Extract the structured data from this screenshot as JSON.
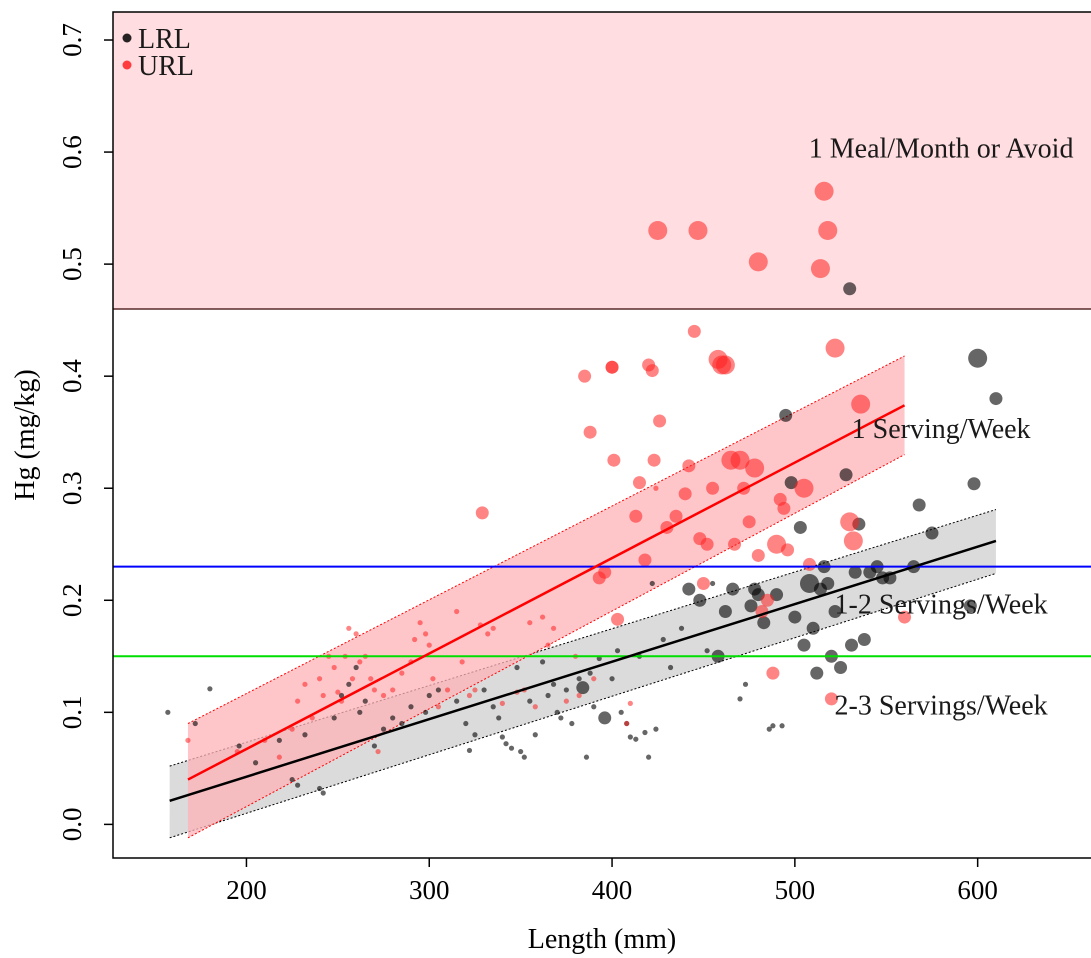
{
  "chart_data": {
    "type": "scatter",
    "title": "",
    "xlabel": "Length (mm)",
    "ylabel": "Hg (mg/kg)",
    "xlim": [
      127,
      662
    ],
    "ylim": [
      -0.03,
      0.725
    ],
    "xticks": [
      200,
      300,
      400,
      500,
      600
    ],
    "yticks": [
      0.0,
      0.1,
      0.2,
      0.3,
      0.4,
      0.5,
      0.6,
      0.7
    ],
    "xtick_labels": [
      "200",
      "300",
      "400",
      "500",
      "600"
    ],
    "ytick_labels": [
      "0.0",
      "0.1",
      "0.2",
      "0.3",
      "0.4",
      "0.5",
      "0.6",
      "0.7"
    ],
    "grid": false,
    "legend_position": "top-left",
    "legend": [
      {
        "name": "LRL",
        "color": "#000000"
      },
      {
        "name": "URL",
        "color": "#ff2020"
      }
    ],
    "avoid_zone": {
      "y_from": 0.46,
      "label": "1 Meal/Month or Avoid",
      "label_x": 580,
      "label_y": 0.595,
      "fill": "#ffdde0",
      "border": "#5a2a2a"
    },
    "thresholds": [
      {
        "y": 0.23,
        "color": "#0000ff"
      },
      {
        "y": 0.15,
        "color": "#00dd00"
      }
    ],
    "zone_labels": [
      {
        "text": "1 Serving/Week",
        "x": 580,
        "y": 0.345
      },
      {
        "text": "1-2 Servings/Week",
        "x": 580,
        "y": 0.188
      },
      {
        "text": "2-3 Servings/Week",
        "x": 580,
        "y": 0.098
      }
    ],
    "fits": [
      {
        "series": "LRL",
        "color": "#000000",
        "band_fill": "#cfcfcf",
        "x": [
          158,
          610
        ],
        "y": [
          0.021,
          0.253
        ],
        "lower": [
          -0.012,
          0.224
        ],
        "upper": [
          0.052,
          0.281
        ]
      },
      {
        "series": "URL",
        "color": "#ff0000",
        "band_fill": "#ffb3b8",
        "x": [
          168,
          560
        ],
        "y": [
          0.04,
          0.374
        ],
        "lower": [
          -0.012,
          0.33
        ],
        "upper": [
          0.09,
          0.418
        ]
      }
    ],
    "series": [
      {
        "name": "LRL",
        "color": "#000000",
        "opacity": 0.6,
        "points": [
          [
            157,
            0.1,
            1
          ],
          [
            172,
            0.09,
            1
          ],
          [
            180,
            0.121,
            1
          ],
          [
            196,
            0.07,
            1
          ],
          [
            205,
            0.055,
            1
          ],
          [
            218,
            0.075,
            1
          ],
          [
            225,
            0.04,
            1
          ],
          [
            228,
            0.035,
            1
          ],
          [
            232,
            0.08,
            1
          ],
          [
            240,
            0.032,
            1
          ],
          [
            242,
            0.028,
            1
          ],
          [
            248,
            0.095,
            1
          ],
          [
            252,
            0.115,
            1
          ],
          [
            256,
            0.125,
            1
          ],
          [
            260,
            0.14,
            1
          ],
          [
            262,
            0.1,
            1
          ],
          [
            265,
            0.11,
            1
          ],
          [
            270,
            0.07,
            1
          ],
          [
            275,
            0.085,
            1
          ],
          [
            280,
            0.095,
            1
          ],
          [
            285,
            0.09,
            1
          ],
          [
            290,
            0.105,
            1
          ],
          [
            298,
            0.1,
            1
          ],
          [
            300,
            0.115,
            1
          ],
          [
            305,
            0.12,
            1
          ],
          [
            315,
            0.11,
            1
          ],
          [
            320,
            0.09,
            1
          ],
          [
            322,
            0.066,
            1
          ],
          [
            325,
            0.08,
            1
          ],
          [
            330,
            0.12,
            1
          ],
          [
            335,
            0.105,
            1
          ],
          [
            338,
            0.095,
            1
          ],
          [
            340,
            0.078,
            1
          ],
          [
            342,
            0.072,
            1
          ],
          [
            345,
            0.068,
            1
          ],
          [
            348,
            0.14,
            1
          ],
          [
            350,
            0.065,
            1
          ],
          [
            352,
            0.06,
            1
          ],
          [
            355,
            0.11,
            1
          ],
          [
            358,
            0.08,
            1
          ],
          [
            362,
            0.145,
            1
          ],
          [
            365,
            0.115,
            1
          ],
          [
            368,
            0.125,
            1
          ],
          [
            370,
            0.1,
            1
          ],
          [
            372,
            0.095,
            1
          ],
          [
            375,
            0.12,
            1
          ],
          [
            378,
            0.09,
            1
          ],
          [
            382,
            0.13,
            1
          ],
          [
            384,
            0.122,
            2
          ],
          [
            386,
            0.06,
            1
          ],
          [
            388,
            0.135,
            1
          ],
          [
            390,
            0.105,
            1
          ],
          [
            393,
            0.148,
            1
          ],
          [
            396,
            0.095,
            2
          ],
          [
            400,
            0.13,
            1
          ],
          [
            403,
            0.155,
            1
          ],
          [
            405,
            0.1,
            1
          ],
          [
            408,
            0.09,
            1
          ],
          [
            410,
            0.078,
            1
          ],
          [
            413,
            0.076,
            1
          ],
          [
            415,
            0.15,
            1
          ],
          [
            418,
            0.082,
            1
          ],
          [
            420,
            0.06,
            1
          ],
          [
            422,
            0.215,
            1
          ],
          [
            424,
            0.085,
            1
          ],
          [
            428,
            0.165,
            1
          ],
          [
            432,
            0.14,
            1
          ],
          [
            438,
            0.175,
            1
          ],
          [
            442,
            0.21,
            2
          ],
          [
            448,
            0.2,
            2
          ],
          [
            452,
            0.155,
            1
          ],
          [
            455,
            0.215,
            1
          ],
          [
            458,
            0.15,
            2
          ],
          [
            462,
            0.19,
            2
          ],
          [
            466,
            0.21,
            2
          ],
          [
            470,
            0.112,
            1
          ],
          [
            473,
            0.125,
            1
          ],
          [
            476,
            0.195,
            2
          ],
          [
            478,
            0.21,
            2
          ],
          [
            480,
            0.205,
            2
          ],
          [
            483,
            0.18,
            2
          ],
          [
            486,
            0.085,
            1
          ],
          [
            488,
            0.088,
            1
          ],
          [
            490,
            0.205,
            2
          ],
          [
            493,
            0.088,
            1
          ],
          [
            495,
            0.365,
            2
          ],
          [
            498,
            0.305,
            2
          ],
          [
            500,
            0.185,
            2
          ],
          [
            503,
            0.265,
            2
          ],
          [
            505,
            0.16,
            2
          ],
          [
            508,
            0.215,
            3
          ],
          [
            510,
            0.175,
            2
          ],
          [
            512,
            0.135,
            2
          ],
          [
            514,
            0.21,
            2
          ],
          [
            516,
            0.23,
            2
          ],
          [
            518,
            0.215,
            2
          ],
          [
            520,
            0.15,
            2
          ],
          [
            522,
            0.19,
            2
          ],
          [
            525,
            0.14,
            2
          ],
          [
            528,
            0.312,
            2
          ],
          [
            530,
            0.478,
            2
          ],
          [
            531,
            0.16,
            2
          ],
          [
            533,
            0.225,
            2
          ],
          [
            535,
            0.268,
            2
          ],
          [
            538,
            0.165,
            2
          ],
          [
            541,
            0.225,
            2
          ],
          [
            545,
            0.23,
            2
          ],
          [
            548,
            0.22,
            2
          ],
          [
            552,
            0.22,
            2
          ],
          [
            565,
            0.23,
            2
          ],
          [
            568,
            0.285,
            2
          ],
          [
            575,
            0.26,
            2
          ],
          [
            596,
            0.195,
            2
          ],
          [
            598,
            0.304,
            2
          ],
          [
            600,
            0.416,
            3
          ],
          [
            610,
            0.38,
            2
          ]
        ]
      },
      {
        "name": "URL",
        "color": "#ff2020",
        "opacity": 0.55,
        "points": [
          [
            168,
            0.075,
            1
          ],
          [
            195,
            0.065,
            1
          ],
          [
            210,
            0.075,
            1
          ],
          [
            218,
            0.06,
            1
          ],
          [
            225,
            0.085,
            1
          ],
          [
            228,
            0.11,
            1
          ],
          [
            232,
            0.125,
            1
          ],
          [
            236,
            0.095,
            1
          ],
          [
            240,
            0.13,
            1
          ],
          [
            242,
            0.115,
            1
          ],
          [
            245,
            0.15,
            1
          ],
          [
            248,
            0.14,
            1
          ],
          [
            250,
            0.118,
            1
          ],
          [
            252,
            0.11,
            1
          ],
          [
            254,
            0.15,
            1
          ],
          [
            256,
            0.175,
            1
          ],
          [
            258,
            0.13,
            1
          ],
          [
            260,
            0.17,
            1
          ],
          [
            262,
            0.145,
            1
          ],
          [
            265,
            0.15,
            1
          ],
          [
            268,
            0.13,
            1
          ],
          [
            270,
            0.12,
            1
          ],
          [
            272,
            0.065,
            1
          ],
          [
            275,
            0.115,
            1
          ],
          [
            280,
            0.12,
            1
          ],
          [
            285,
            0.135,
            1
          ],
          [
            290,
            0.145,
            1
          ],
          [
            292,
            0.165,
            1
          ],
          [
            295,
            0.18,
            1
          ],
          [
            298,
            0.17,
            1
          ],
          [
            300,
            0.16,
            1
          ],
          [
            302,
            0.13,
            1
          ],
          [
            305,
            0.105,
            1
          ],
          [
            310,
            0.12,
            1
          ],
          [
            315,
            0.19,
            1
          ],
          [
            318,
            0.145,
            1
          ],
          [
            322,
            0.115,
            1
          ],
          [
            325,
            0.12,
            1
          ],
          [
            328,
            0.178,
            1
          ],
          [
            329,
            0.278,
            2
          ],
          [
            332,
            0.17,
            1
          ],
          [
            335,
            0.175,
            1
          ],
          [
            340,
            0.108,
            1
          ],
          [
            348,
            0.118,
            1
          ],
          [
            352,
            0.12,
            1
          ],
          [
            355,
            0.18,
            1
          ],
          [
            358,
            0.105,
            1
          ],
          [
            362,
            0.185,
            1
          ],
          [
            365,
            0.16,
            1
          ],
          [
            368,
            0.175,
            1
          ],
          [
            375,
            0.11,
            1
          ],
          [
            380,
            0.15,
            1
          ],
          [
            382,
            0.115,
            1
          ],
          [
            385,
            0.4,
            2
          ],
          [
            388,
            0.35,
            2
          ],
          [
            390,
            0.13,
            1
          ],
          [
            393,
            0.22,
            2
          ],
          [
            396,
            0.225,
            2
          ],
          [
            400,
            0.408,
            2
          ],
          [
            401,
            0.325,
            2
          ],
          [
            403,
            0.183,
            2
          ],
          [
            408,
            0.09,
            1
          ],
          [
            410,
            0.108,
            1
          ],
          [
            413,
            0.275,
            2
          ],
          [
            415,
            0.305,
            2
          ],
          [
            418,
            0.236,
            2
          ],
          [
            420,
            0.41,
            2
          ],
          [
            422,
            0.405,
            2
          ],
          [
            423,
            0.325,
            2
          ],
          [
            424,
            0.3,
            1
          ],
          [
            425,
            0.53,
            3
          ],
          [
            426,
            0.36,
            2
          ],
          [
            430,
            0.265,
            2
          ],
          [
            435,
            0.275,
            2
          ],
          [
            440,
            0.295,
            2
          ],
          [
            442,
            0.32,
            2
          ],
          [
            445,
            0.44,
            2
          ],
          [
            447,
            0.53,
            3
          ],
          [
            448,
            0.255,
            2
          ],
          [
            450,
            0.215,
            2
          ],
          [
            452,
            0.25,
            2
          ],
          [
            455,
            0.3,
            2
          ],
          [
            458,
            0.415,
            3
          ],
          [
            460,
            0.41,
            3
          ],
          [
            462,
            0.41,
            3
          ],
          [
            465,
            0.325,
            3
          ],
          [
            467,
            0.25,
            2
          ],
          [
            470,
            0.325,
            3
          ],
          [
            472,
            0.3,
            2
          ],
          [
            475,
            0.27,
            2
          ],
          [
            478,
            0.318,
            3
          ],
          [
            480,
            0.24,
            2
          ],
          [
            482,
            0.19,
            2
          ],
          [
            485,
            0.2,
            2
          ],
          [
            488,
            0.135,
            2
          ],
          [
            490,
            0.25,
            3
          ],
          [
            492,
            0.29,
            2
          ],
          [
            494,
            0.282,
            2
          ],
          [
            496,
            0.245,
            2
          ],
          [
            505,
            0.3,
            3
          ],
          [
            508,
            0.232,
            2
          ],
          [
            514,
            0.496,
            3
          ],
          [
            516,
            0.565,
            3
          ],
          [
            518,
            0.53,
            3
          ],
          [
            520,
            0.112,
            2
          ],
          [
            522,
            0.425,
            3
          ],
          [
            530,
            0.27,
            3
          ],
          [
            532,
            0.253,
            3
          ],
          [
            536,
            0.375,
            3
          ],
          [
            560,
            0.185,
            2
          ],
          [
            480,
            0.502,
            3
          ],
          [
            400,
            0.408,
            2
          ]
        ]
      }
    ]
  }
}
